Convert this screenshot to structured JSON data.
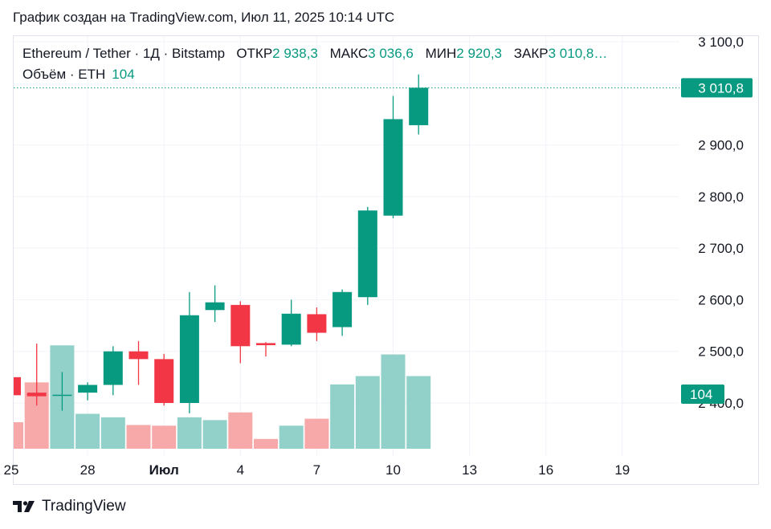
{
  "caption": "График создан на TradingView.com, Июл 11, 2025 10:14 UTC",
  "legend": {
    "symbol": "Ethereum / Tether · 1Д · Bitstamp",
    "open_label": "ОТКР",
    "open": "2 938,3",
    "high_label": "МАКС",
    "high": "3 036,6",
    "low_label": "МИН",
    "low": "2 920,3",
    "close_label": "ЗАКР",
    "close": "3 010,8…",
    "volume_label": "Объём · ETH",
    "volume": "104"
  },
  "footer": {
    "brand": "TradingView"
  },
  "colors": {
    "up": "#089981",
    "down": "#f23645",
    "up_vol": "#92d1c9",
    "down_vol": "#f7a9a9",
    "grid": "#f0f3fa"
  },
  "chart_data": {
    "type": "candlestick",
    "y_ticks": [
      "3 100,0",
      "2 900,0",
      "2 800,0",
      "2 700,0",
      "2 600,0",
      "2 500,0",
      "2 400,0"
    ],
    "y_tick_values": [
      3100,
      2900,
      2800,
      2700,
      2600,
      2500,
      2400
    ],
    "ylim": [
      2330,
      3190
    ],
    "x_ticks": [
      {
        "label": "25",
        "index": 0
      },
      {
        "label": "28",
        "index": 3
      },
      {
        "label": "Июл",
        "index": 6,
        "bold": true
      },
      {
        "label": "4",
        "index": 9
      },
      {
        "label": "7",
        "index": 12
      },
      {
        "label": "10",
        "index": 15
      },
      {
        "label": "13",
        "index": 18
      },
      {
        "label": "16",
        "index": 21
      },
      {
        "label": "19",
        "index": 24
      }
    ],
    "last_price_label": "3 010,8",
    "last_price": 3010.8,
    "last_volume_label": "104",
    "candles": [
      {
        "o": 2450,
        "h": 2455,
        "l": 2410,
        "c": 2415,
        "v": 38
      },
      {
        "o": 2420,
        "h": 2515,
        "l": 2395,
        "c": 2413,
        "v": 95
      },
      {
        "o": 2415,
        "h": 2460,
        "l": 2385,
        "c": 2416,
        "v": 148
      },
      {
        "o": 2420,
        "h": 2440,
        "l": 2405,
        "c": 2435,
        "v": 50
      },
      {
        "o": 2435,
        "h": 2510,
        "l": 2415,
        "c": 2500,
        "v": 45
      },
      {
        "o": 2500,
        "h": 2520,
        "l": 2435,
        "c": 2485,
        "v": 34
      },
      {
        "o": 2485,
        "h": 2495,
        "l": 2395,
        "c": 2400,
        "v": 33
      },
      {
        "o": 2400,
        "h": 2615,
        "l": 2380,
        "c": 2570,
        "v": 45
      },
      {
        "o": 2580,
        "h": 2628,
        "l": 2557,
        "c": 2595,
        "v": 41
      },
      {
        "o": 2590,
        "h": 2597,
        "l": 2477,
        "c": 2510,
        "v": 52
      },
      {
        "o": 2516,
        "h": 2518,
        "l": 2490,
        "c": 2512,
        "v": 14
      },
      {
        "o": 2513,
        "h": 2600,
        "l": 2510,
        "c": 2573,
        "v": 33
      },
      {
        "o": 2572,
        "h": 2585,
        "l": 2520,
        "c": 2536,
        "v": 43
      },
      {
        "o": 2547,
        "h": 2620,
        "l": 2530,
        "c": 2615,
        "v": 92
      },
      {
        "o": 2605,
        "h": 2780,
        "l": 2590,
        "c": 2773,
        "v": 104
      },
      {
        "o": 2763,
        "h": 2995,
        "l": 2758,
        "c": 2950,
        "v": 135
      },
      {
        "o": 2938.3,
        "h": 3036.6,
        "l": 2920.3,
        "c": 3010.8,
        "v": 104
      }
    ],
    "volume_max": 160
  }
}
